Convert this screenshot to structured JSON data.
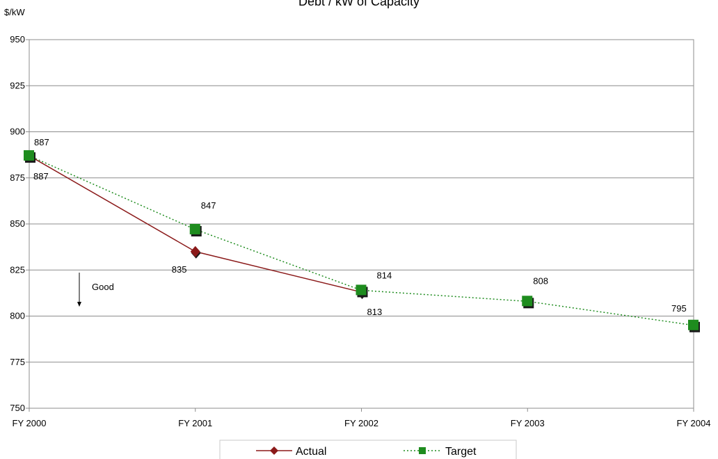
{
  "chart_data": {
    "type": "line",
    "title": "Debt / kW of Capacity",
    "ylabel": "$/kW",
    "xlabel": "",
    "categories": [
      "FY 2000",
      "FY 2001",
      "FY 2002",
      "FY 2003",
      "FY 2004"
    ],
    "ylim": [
      750,
      950
    ],
    "yticks": [
      750,
      775,
      800,
      825,
      850,
      875,
      900,
      925,
      950
    ],
    "grid": "horizontal",
    "legend_position": "bottom",
    "annotation": "Good",
    "series": [
      {
        "name": "Actual",
        "values": [
          887,
          835,
          813,
          null,
          null
        ],
        "color": "#8B1A1A",
        "line_style": "solid",
        "marker": "diamond"
      },
      {
        "name": "Target",
        "values": [
          887,
          847,
          814,
          808,
          795
        ],
        "color": "#1E8C1E",
        "line_style": "dotted",
        "marker": "square"
      }
    ],
    "data_labels": {
      "Actual": [
        "887",
        "835",
        "813"
      ],
      "Target": [
        "887",
        "847",
        "814",
        "808",
        "795"
      ]
    }
  }
}
